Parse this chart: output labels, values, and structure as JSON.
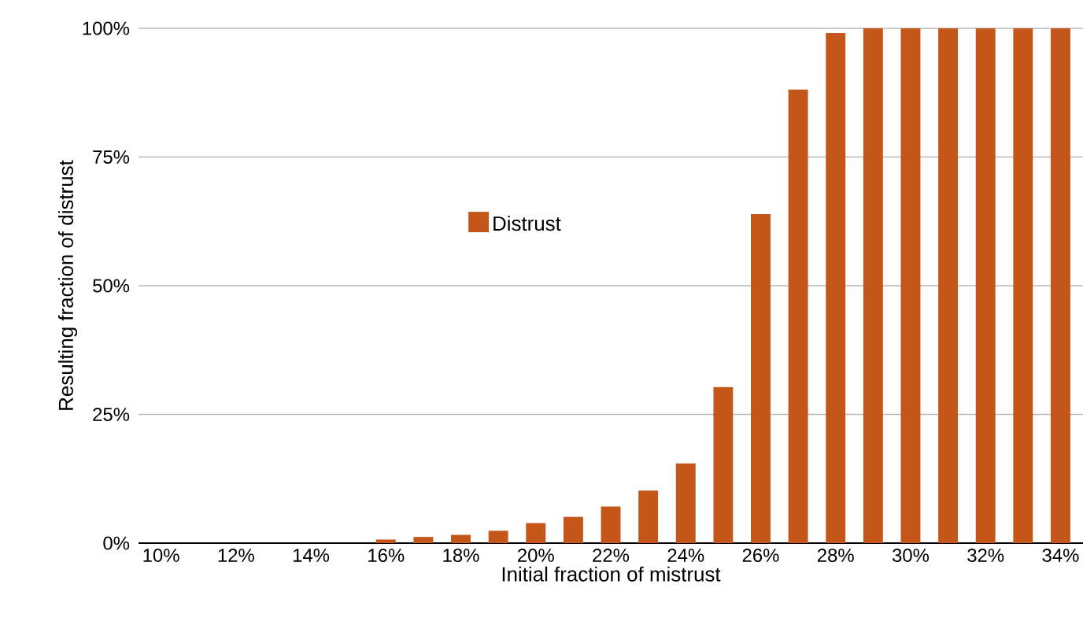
{
  "chart_data": {
    "type": "bar",
    "xlabel": "Initial fraction of mistrust",
    "ylabel": "Resulting fraction of distrust",
    "categories": [
      "10%",
      null,
      "12%",
      null,
      "14%",
      null,
      "16%",
      null,
      "18%",
      null,
      "20%",
      null,
      "22%",
      null,
      "24%",
      null,
      "26%",
      null,
      "28%",
      null,
      "30%",
      null,
      "32%",
      null,
      "34%"
    ],
    "series": [
      {
        "name": "Distrust",
        "color": "#c4561a",
        "values": [
          0,
          0,
          0,
          0,
          0,
          0,
          0.7,
          1.2,
          1.6,
          2.4,
          3.9,
          5.1,
          7.1,
          10.2,
          15.5,
          30.3,
          63.9,
          88.1,
          99.1,
          100,
          100,
          100,
          100,
          100,
          100
        ]
      }
    ],
    "ylim": [
      0,
      100
    ],
    "yticks": [
      {
        "value": 0,
        "label": "0%"
      },
      {
        "value": 25,
        "label": "25%"
      },
      {
        "value": 50,
        "label": "50%"
      },
      {
        "value": 75,
        "label": "75%"
      },
      {
        "value": 100,
        "label": "100%"
      }
    ],
    "grid": "y",
    "legend": "center"
  }
}
